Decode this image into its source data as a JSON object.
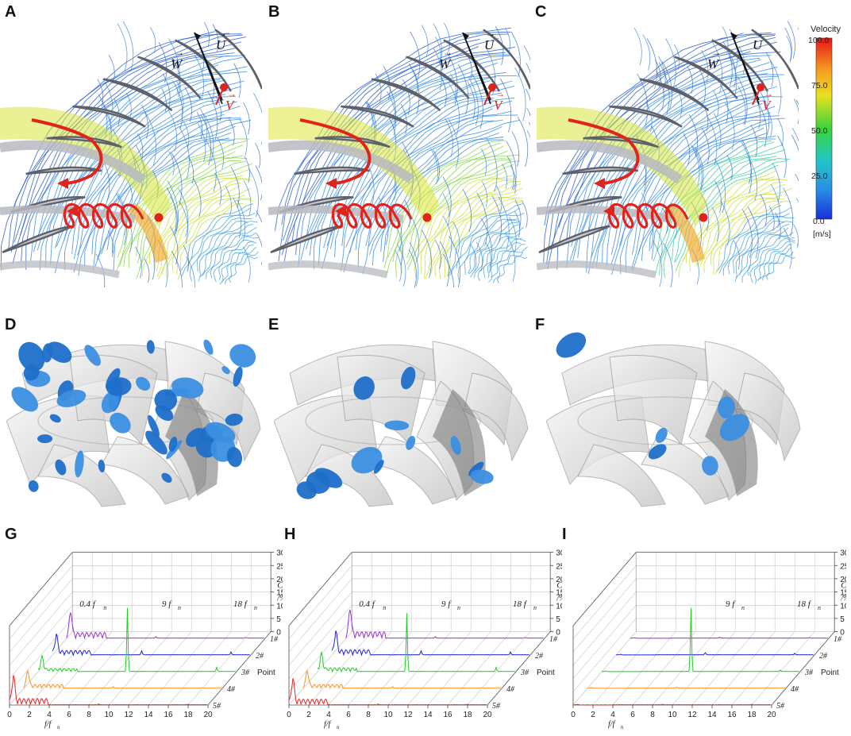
{
  "panels": [
    {
      "letter": "A"
    },
    {
      "letter": "B"
    },
    {
      "letter": "C"
    },
    {
      "letter": "D"
    },
    {
      "letter": "E"
    },
    {
      "letter": "F"
    },
    {
      "letter": "G"
    },
    {
      "letter": "H"
    },
    {
      "letter": "I"
    }
  ],
  "vectors": {
    "W": "W",
    "U": "U",
    "V": "V",
    "arrow": "→"
  },
  "colorbar": {
    "title": "Velocity",
    "ticks": [
      "100.0",
      "75.0",
      "50.0",
      "25.0",
      "0.0"
    ],
    "unit": "[m/s]"
  },
  "colors": {
    "streamline_blue": "#3a78d8",
    "vortex_blue": "#1e6fc9",
    "arrow_red": "#e0231b",
    "blade_gray": "#5e6168",
    "series": [
      "#9b30d8",
      "#2222dd",
      "#22cc22",
      "#ff9020",
      "#ee2222"
    ]
  },
  "spectra": {
    "x_ticks": [
      "0",
      "2",
      "4",
      "6",
      "8",
      "10",
      "12",
      "14",
      "16",
      "18",
      "20"
    ],
    "x_label": "f/f",
    "x_label_sub": "n",
    "z_ticks": [
      "0",
      "5",
      "10",
      "15",
      "20",
      "25",
      "30"
    ],
    "z_label_c": "C",
    "z_label_sub": "p",
    "z_label_pct": "/%",
    "points": [
      "1#",
      "2#",
      "3#",
      "4#",
      "5#"
    ],
    "depth_label": "Point",
    "annotations": {
      "low": "0.4 f",
      "mid": "9 f",
      "high": "18 f",
      "sub": "n"
    }
  },
  "chart_data": [
    {
      "type": "line",
      "panel": "G",
      "x_range": [
        0,
        20
      ],
      "z_range": [
        0,
        30
      ],
      "series": [
        {
          "name": "1#",
          "peaks": [
            {
              "x": 0.4,
              "y": 9
            },
            {
              "x": 9,
              "y": 0.5
            },
            {
              "x": 18,
              "y": 0.3
            }
          ]
        },
        {
          "name": "2#",
          "peaks": [
            {
              "x": 0.4,
              "y": 7
            },
            {
              "x": 9,
              "y": 1.5
            },
            {
              "x": 18,
              "y": 1
            }
          ]
        },
        {
          "name": "3#",
          "peaks": [
            {
              "x": 0.4,
              "y": 5
            },
            {
              "x": 9,
              "y": 24
            },
            {
              "x": 18,
              "y": 1.5
            }
          ]
        },
        {
          "name": "4#",
          "peaks": [
            {
              "x": 0.4,
              "y": 6
            },
            {
              "x": 9,
              "y": 0.5
            },
            {
              "x": 18,
              "y": 0.3
            }
          ]
        },
        {
          "name": "5#",
          "peaks": [
            {
              "x": 0.4,
              "y": 10
            },
            {
              "x": 9,
              "y": 0.3
            },
            {
              "x": 18,
              "y": 0.2
            }
          ]
        }
      ]
    },
    {
      "type": "line",
      "panel": "H",
      "x_range": [
        0,
        20
      ],
      "z_range": [
        0,
        30
      ],
      "series": [
        {
          "name": "1#",
          "peaks": [
            {
              "x": 0.4,
              "y": 10
            },
            {
              "x": 9,
              "y": 0.5
            },
            {
              "x": 18,
              "y": 0.3
            }
          ]
        },
        {
          "name": "2#",
          "peaks": [
            {
              "x": 0.4,
              "y": 8
            },
            {
              "x": 9,
              "y": 1.5
            },
            {
              "x": 18,
              "y": 1
            }
          ]
        },
        {
          "name": "3#",
          "peaks": [
            {
              "x": 0.4,
              "y": 6
            },
            {
              "x": 9,
              "y": 22
            },
            {
              "x": 18,
              "y": 1.5
            }
          ]
        },
        {
          "name": "4#",
          "peaks": [
            {
              "x": 0.4,
              "y": 6
            },
            {
              "x": 9,
              "y": 0.5
            },
            {
              "x": 18,
              "y": 0.3
            }
          ]
        },
        {
          "name": "5#",
          "peaks": [
            {
              "x": 0.4,
              "y": 9
            },
            {
              "x": 9,
              "y": 0.3
            },
            {
              "x": 18,
              "y": 0.2
            }
          ]
        }
      ]
    },
    {
      "type": "line",
      "panel": "I",
      "x_range": [
        0,
        20
      ],
      "z_range": [
        0,
        30
      ],
      "series": [
        {
          "name": "1#",
          "peaks": [
            {
              "x": 0.4,
              "y": 0.2
            },
            {
              "x": 9,
              "y": 0.3
            },
            {
              "x": 18,
              "y": 0.2
            }
          ]
        },
        {
          "name": "2#",
          "peaks": [
            {
              "x": 0.4,
              "y": 0.2
            },
            {
              "x": 9,
              "y": 0.8
            },
            {
              "x": 18,
              "y": 0.5
            }
          ]
        },
        {
          "name": "3#",
          "peaks": [
            {
              "x": 0.4,
              "y": 0.2
            },
            {
              "x": 9,
              "y": 24
            },
            {
              "x": 18,
              "y": 0.5
            }
          ]
        },
        {
          "name": "4#",
          "peaks": [
            {
              "x": 0.4,
              "y": 0.2
            },
            {
              "x": 9,
              "y": 0.3
            },
            {
              "x": 18,
              "y": 0.2
            }
          ]
        },
        {
          "name": "5#",
          "peaks": [
            {
              "x": 0.4,
              "y": 0.2
            },
            {
              "x": 9,
              "y": 0.2
            },
            {
              "x": 18,
              "y": 0.2
            }
          ]
        }
      ]
    }
  ]
}
